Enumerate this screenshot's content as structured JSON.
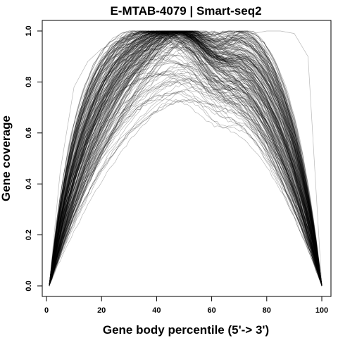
{
  "chart_data": {
    "type": "line",
    "title": "E-MTAB-4079 | Smart-seq2",
    "xlabel": "Gene body percentile (5'-> 3')",
    "ylabel": "Gene coverage",
    "xlim": [
      1,
      100
    ],
    "ylim": [
      0,
      1
    ],
    "x_ticks": [
      0,
      20,
      40,
      60,
      80,
      100
    ],
    "x_tick_labels": [
      "0",
      "20",
      "40",
      "60",
      "80",
      "100"
    ],
    "y_ticks": [
      0,
      0.2,
      0.4,
      0.6,
      0.8,
      1.0
    ],
    "y_tick_labels": [
      "0.0",
      "0.2",
      "0.4",
      "0.6",
      "0.8",
      "1.0"
    ],
    "line_color": "#000000",
    "grid": false,
    "representative_series": [
      {
        "x": [
          1,
          5,
          10,
          15,
          20,
          25,
          30,
          35,
          40,
          45,
          50,
          55,
          60,
          65,
          70,
          75,
          80,
          85,
          90,
          95,
          100
        ],
        "values": [
          0.0,
          0.45,
          0.78,
          0.88,
          0.93,
          0.95,
          0.97,
          0.99,
          1.0,
          1.0,
          0.99,
          0.98,
          0.97,
          0.97,
          0.98,
          0.99,
          1.0,
          1.0,
          0.99,
          0.9,
          0.0
        ]
      },
      {
        "x": [
          1,
          5,
          10,
          15,
          20,
          25,
          30,
          35,
          40,
          45,
          50,
          55,
          60,
          65,
          70,
          75,
          80,
          85,
          90,
          95,
          100
        ],
        "values": [
          0.0,
          0.28,
          0.58,
          0.74,
          0.83,
          0.88,
          0.92,
          0.96,
          0.99,
          1.0,
          0.99,
          0.95,
          0.93,
          0.93,
          0.93,
          0.9,
          0.84,
          0.72,
          0.55,
          0.3,
          0.0
        ]
      },
      {
        "x": [
          1,
          5,
          10,
          15,
          20,
          25,
          30,
          35,
          40,
          45,
          50,
          55,
          60,
          65,
          70,
          75,
          80,
          85,
          90,
          95,
          100
        ],
        "values": [
          0.0,
          0.15,
          0.3,
          0.42,
          0.5,
          0.56,
          0.61,
          0.66,
          0.71,
          0.75,
          0.77,
          0.76,
          0.74,
          0.72,
          0.69,
          0.64,
          0.56,
          0.45,
          0.32,
          0.16,
          0.0
        ]
      }
    ],
    "ensemble_count": 220
  }
}
